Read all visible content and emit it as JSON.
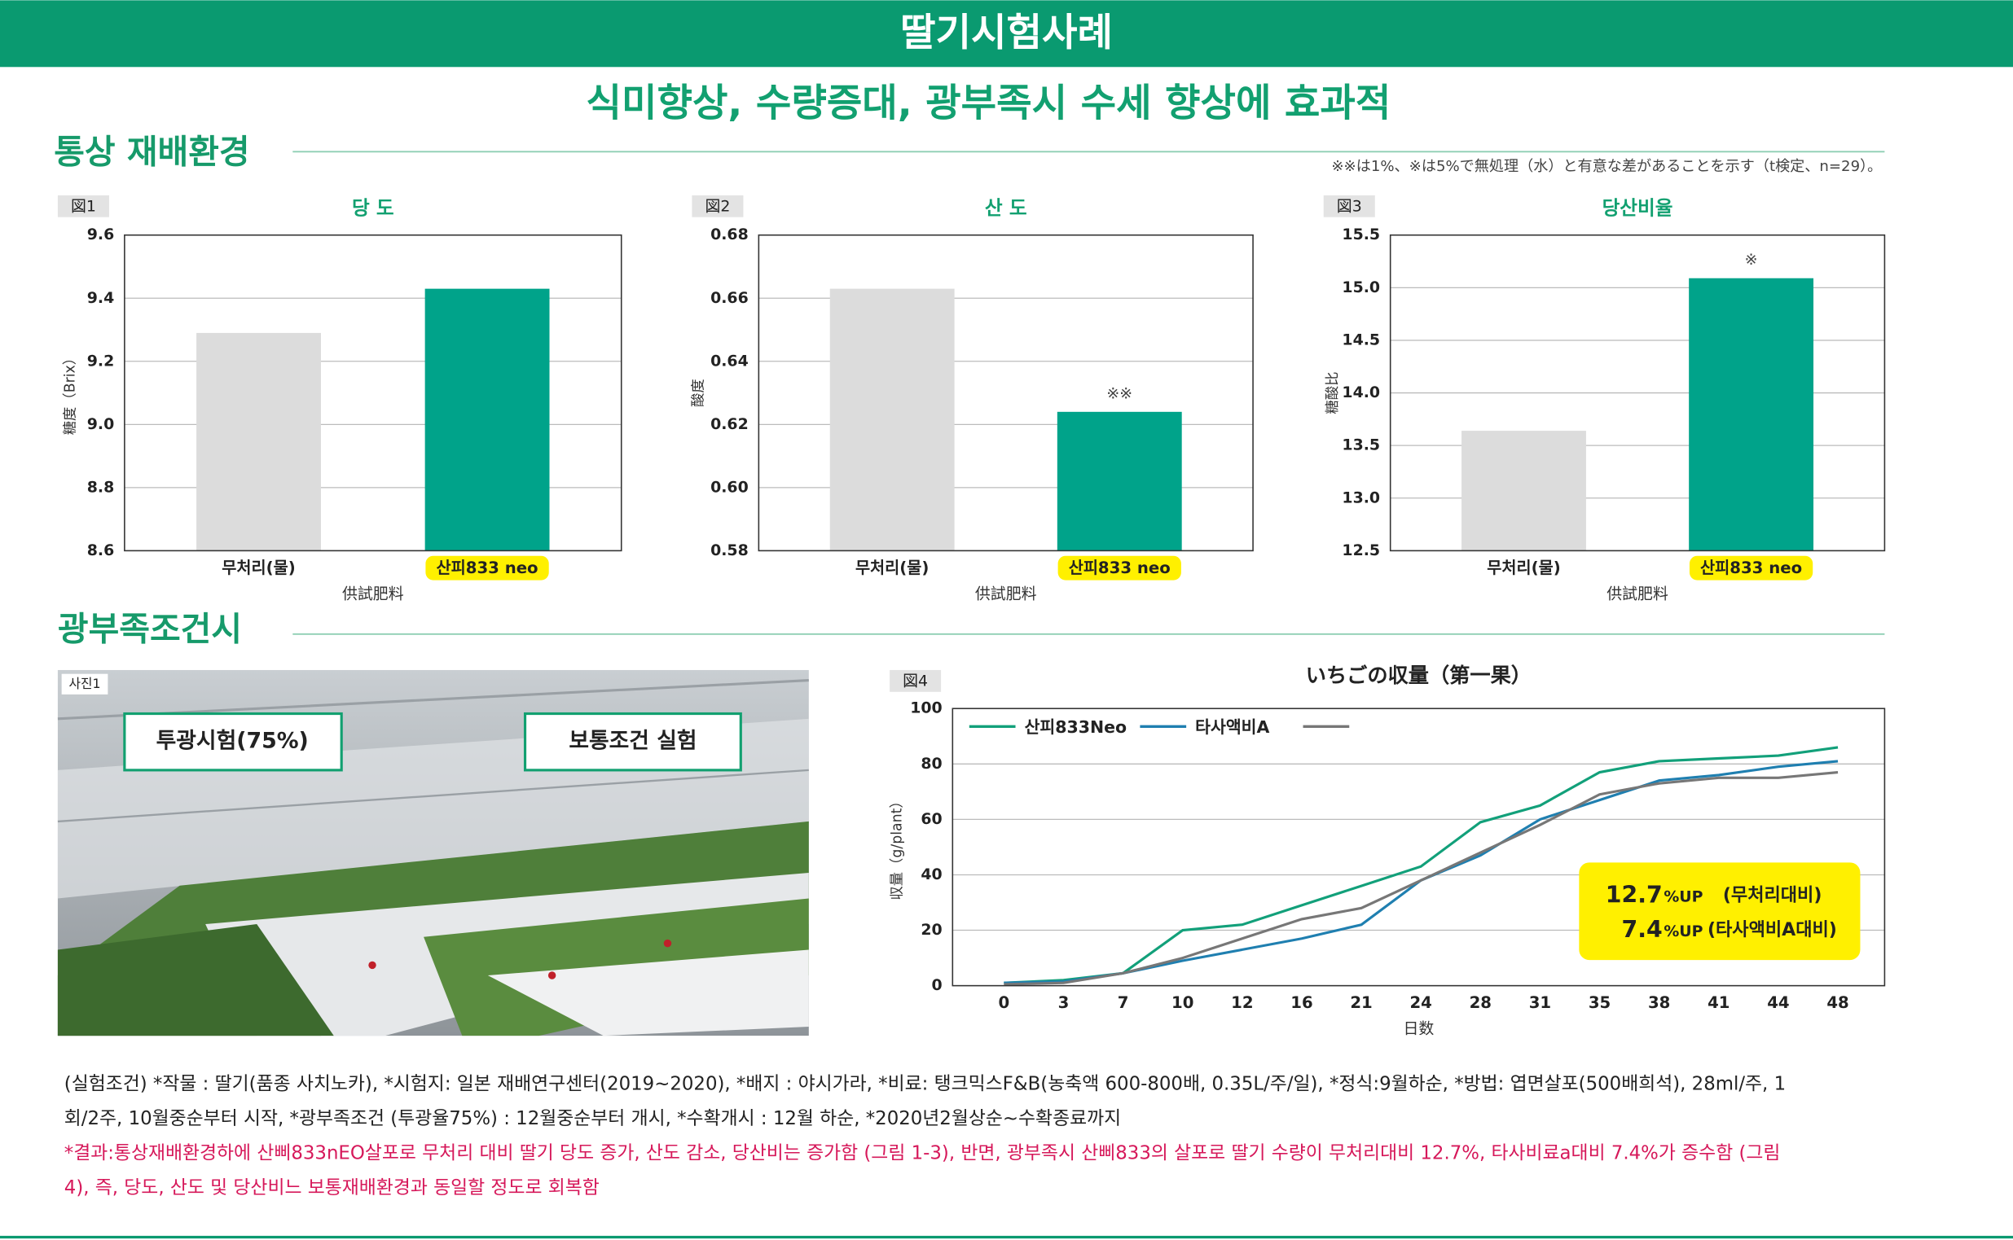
{
  "header": {
    "title": "딸기시험사례",
    "subtitle": "식미향상, 수량증대, 광부족시 수세 향상에 효과적"
  },
  "section1": {
    "title": "통상 재배환경",
    "note": "※※は1%、※は5%で無処理（水）と有意な差があることを示す（t検定、n=29）。"
  },
  "section2": {
    "title": "광부족조건시"
  },
  "photo": {
    "tag": "사진1",
    "labels": [
      "투광시험(75%)",
      "보통조건 실험"
    ]
  },
  "chart_data": [
    {
      "type": "bar",
      "figure": "図1",
      "title": "당 도",
      "categories": [
        "무처리(물)",
        "산피833 neo"
      ],
      "category_highlight": [
        null,
        "#fff000"
      ],
      "colors": [
        "#dcdcdc",
        "#00a38a"
      ],
      "values": [
        9.29,
        9.43
      ],
      "annotations": [
        null,
        null
      ],
      "ylim": [
        8.6,
        9.6
      ],
      "yticks": [
        8.6,
        8.8,
        {
          "value": 9,
          "label": "9.0"
        },
        9.2,
        9.4,
        9.6
      ],
      "y_label": "糖度（Brix）",
      "x_label": "供試肥料",
      "grid": true
    },
    {
      "type": "bar",
      "figure": "図2",
      "title": "산 도",
      "categories": [
        "무처리(물)",
        "산피833 neo"
      ],
      "category_highlight": [
        null,
        "#fff000"
      ],
      "colors": [
        "#dcdcdc",
        "#00a38a"
      ],
      "values": [
        0.663,
        0.624
      ],
      "annotations": [
        null,
        "※※"
      ],
      "ylim": [
        0.58,
        0.68
      ],
      "yticks": [
        0.58,
        {
          "value": 0.6,
          "label": "0.60"
        },
        0.62,
        0.64,
        0.66,
        0.68
      ],
      "y_label": "酸度",
      "x_label": "供試肥料",
      "grid": true
    },
    {
      "type": "bar",
      "figure": "図3",
      "title": "당산비율",
      "categories": [
        "무처리(물)",
        "산피833 neo"
      ],
      "category_highlight": [
        null,
        "#fff000"
      ],
      "colors": [
        "#dcdcdc",
        "#00a38a"
      ],
      "values": [
        13.64,
        15.09
      ],
      "annotations": [
        null,
        "※"
      ],
      "ylim": [
        12.5,
        15.5
      ],
      "yticks": [
        12.5,
        {
          "value": 13,
          "label": "13.0"
        },
        13.5,
        {
          "value": 14,
          "label": "14.0"
        },
        14.5,
        {
          "value": 15,
          "label": "15.0"
        },
        15.5
      ],
      "y_label": "糖酸比",
      "x_label": "供試肥料",
      "grid": true
    },
    {
      "type": "line",
      "figure": "図4",
      "title": "いちごの収量（第一果）",
      "categories": [
        "0",
        "3",
        "7",
        "10",
        "12",
        "16",
        "21",
        "24",
        "28",
        "31",
        "35",
        "38",
        "41",
        "44",
        "48"
      ],
      "series": [
        {
          "name": "산피833Neo",
          "color": "#12a07a",
          "values": [
            1,
            2,
            4.5,
            20,
            22,
            29,
            36,
            43,
            59,
            65,
            77,
            81,
            82,
            83,
            86
          ]
        },
        {
          "name": "타사액비A",
          "color": "#1f7fb0",
          "values": [
            1,
            1.5,
            4.5,
            9,
            13,
            17,
            22,
            38,
            47,
            60,
            67,
            74,
            76,
            79,
            81
          ]
        },
        {
          "color": "#777777",
          "values": [
            0.5,
            1,
            4.5,
            10,
            17,
            24,
            28,
            38,
            48,
            58,
            69,
            73,
            75,
            75,
            77
          ]
        }
      ],
      "ylim": [
        0,
        100
      ],
      "yticks": [
        0,
        20,
        40,
        60,
        80,
        100
      ],
      "y_label": "収量（g/plant）",
      "x_label": "日数",
      "grid": true,
      "callout": [
        {
          "figure": "12.7",
          "unit": "%UP",
          "note": "(무처리대비)"
        },
        {
          "figure": "7.4",
          "unit": "%UP",
          "note": "(타사액비A대비)"
        }
      ]
    }
  ],
  "conditions": [
    "(실험조건) *작물 : 딸기(품종 사치노카), *시험지: 일본 재배연구센터(2019~2020), *배지 : 야시가라, *비료: 탱크믹스F&B(농축액 600-800배, 0.35L/주/일), *정식:9월하순, *방법: 엽면살포(500배희석), 28ml/주, 1",
    "회/2주, 10월중순부터 시작, *광부족조건 (투광율75%) : 12월중순부터 개시, *수확개시 : 12월 하순, *2020년2월상순~수확종료까지"
  ],
  "result": [
    "*결과:통상재배환경하에 산삐833nEO살포로 무처리 대비 딸기 당도 증가, 산도 감소, 당산비는 증가함 (그림 1-3), 반면, 광부족시 산삐833의 살포로 딸기 수량이 무처리대비 12.7%, 타사비료a대비 7.4%가 증수함 (그림",
    "4), 즉, 당도, 산도 및 당산비느 보통재배환경과 동일할 정도로 회복함"
  ]
}
